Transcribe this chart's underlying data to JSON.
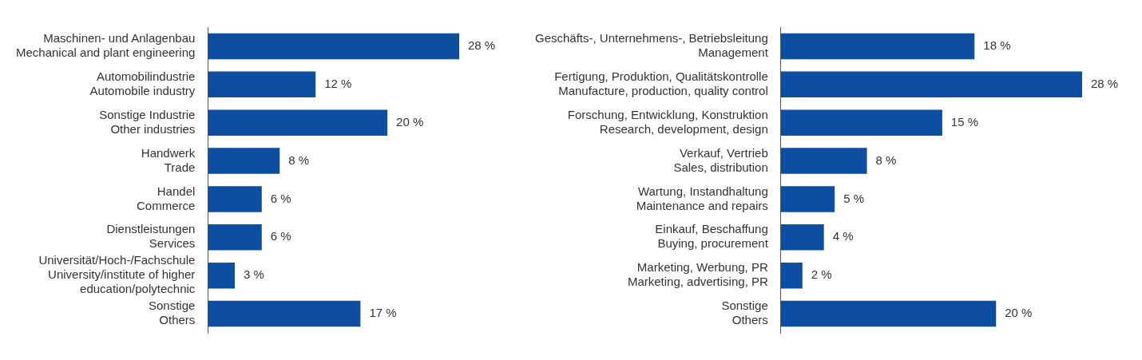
{
  "chart_data": [
    {
      "type": "bar",
      "orientation": "horizontal",
      "color": "#0d4ea1",
      "tick_labels": "y",
      "categories": [
        "Maschinen- und Anlagenbau\nMechanical and plant engineering",
        "Automobilindustrie\nAutomobile industry",
        "Sonstige Industrie\nOther industries",
        "Handwerk\nTrade",
        "Handel\nCommerce",
        "Dienstleistungen\nServices",
        "Universität/Hoch-/Fachschule\nUniversity/institute of higher\neducation/polytechnic",
        "Sonstige\nOthers"
      ],
      "values": [
        28,
        12,
        20,
        8,
        6,
        6,
        3,
        17
      ],
      "value_labels": [
        "28 %",
        "12 %",
        "20 %",
        "8 %",
        "6 %",
        "6 %",
        "3 %",
        "17 %"
      ]
    },
    {
      "type": "bar",
      "orientation": "horizontal",
      "color": "#0d4ea1",
      "tick_labels": "y",
      "categories": [
        "Geschäfts-, Unternehmens-, Betriebsleitung\nManagement",
        "Fertigung, Produktion, Qualitätskontrolle\nManufacture, production, quality control",
        "Forschung, Entwicklung, Konstruktion\nResearch, development, design",
        "Verkauf, Vertrieb\nSales, distribution",
        "Wartung, Instandhaltung\nMaintenance and repairs",
        "Einkauf, Beschaffung\nBuying, procurement",
        "Marketing, Werbung, PR\nMarketing, advertising, PR",
        "Sonstige\nOthers"
      ],
      "values": [
        18,
        28,
        15,
        8,
        5,
        4,
        2,
        20
      ],
      "value_labels": [
        "18 %",
        "28 %",
        "15 %",
        "8 %",
        "5 %",
        "4 %",
        "2 %",
        "20 %"
      ]
    }
  ]
}
